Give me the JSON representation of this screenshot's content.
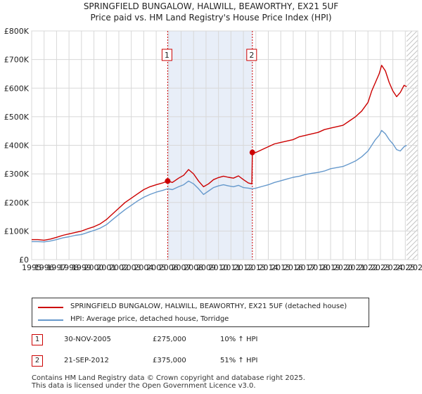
{
  "chart_data": {
    "type": "line",
    "title": "SPRINGFIELD BUNGALOW, HALWILL, BEAWORTHY, EX21 5UF",
    "subtitle": "Price paid vs. HM Land Registry's House Price Index (HPI)",
    "xlabel": "",
    "ylabel": "",
    "xlim": [
      1995,
      2026
    ],
    "ylim": [
      0,
      800000
    ],
    "x_ticks": [
      "1995",
      "1996",
      "1997",
      "1998",
      "1999",
      "2000",
      "2001",
      "2002",
      "2003",
      "2004",
      "2005",
      "2006",
      "2007",
      "2008",
      "2009",
      "2010",
      "2011",
      "2012",
      "2013",
      "2014",
      "2015",
      "2016",
      "2017",
      "2018",
      "2019",
      "2020",
      "2021",
      "2022",
      "2023",
      "2024",
      "2025",
      "2026"
    ],
    "y_ticks": [
      {
        "value": 0,
        "label": "£0"
      },
      {
        "value": 100000,
        "label": "£100K"
      },
      {
        "value": 200000,
        "label": "£200K"
      },
      {
        "value": 300000,
        "label": "£300K"
      },
      {
        "value": 400000,
        "label": "£400K"
      },
      {
        "value": 500000,
        "label": "£500K"
      },
      {
        "value": 600000,
        "label": "£600K"
      },
      {
        "value": 700000,
        "label": "£700K"
      },
      {
        "value": 800000,
        "label": "£800K"
      }
    ],
    "shaded_period": [
      2005.92,
      2012.72
    ],
    "projection_start": 2025.1,
    "series": [
      {
        "name": "SPRINGFIELD BUNGALOW, HALWILL, BEAWORTHY, EX21 5UF (detached house)",
        "color": "#cc0000",
        "x": [
          1995.0,
          1995.5,
          1996.0,
          1996.5,
          1997.0,
          1997.5,
          1998.0,
          1998.5,
          1999.0,
          1999.5,
          2000.0,
          2000.5,
          2001.0,
          2001.5,
          2002.0,
          2002.5,
          2003.0,
          2003.5,
          2004.0,
          2004.5,
          2005.0,
          2005.5,
          2005.92,
          2006.3,
          2006.8,
          2007.2,
          2007.6,
          2008.0,
          2008.4,
          2008.8,
          2009.2,
          2009.6,
          2010.0,
          2010.4,
          2010.8,
          2011.2,
          2011.6,
          2012.0,
          2012.4,
          2012.68,
          2012.72,
          2013.0,
          2013.5,
          2014.0,
          2014.5,
          2015.0,
          2015.5,
          2016.0,
          2016.5,
          2017.0,
          2017.5,
          2018.0,
          2018.5,
          2019.0,
          2019.5,
          2020.0,
          2020.5,
          2021.0,
          2021.5,
          2022.0,
          2022.3,
          2022.6,
          2022.9,
          2023.1,
          2023.4,
          2023.7,
          2024.0,
          2024.3,
          2024.6,
          2024.9,
          2025.1
        ],
        "values": [
          70000,
          70000,
          68000,
          72000,
          78000,
          85000,
          90000,
          95000,
          100000,
          108000,
          115000,
          125000,
          140000,
          160000,
          180000,
          200000,
          215000,
          230000,
          245000,
          255000,
          262000,
          268000,
          275000,
          270000,
          285000,
          295000,
          315000,
          300000,
          275000,
          255000,
          265000,
          280000,
          287000,
          292000,
          288000,
          285000,
          293000,
          280000,
          268000,
          265000,
          375000,
          375000,
          385000,
          395000,
          405000,
          410000,
          415000,
          420000,
          430000,
          435000,
          440000,
          445000,
          455000,
          460000,
          465000,
          470000,
          485000,
          500000,
          520000,
          550000,
          590000,
          620000,
          650000,
          680000,
          660000,
          620000,
          590000,
          570000,
          585000,
          610000,
          605000
        ]
      },
      {
        "name": "HPI: Average price, detached house, Torridge",
        "color": "#6699cc",
        "x": [
          1995.0,
          1995.5,
          1996.0,
          1996.5,
          1997.0,
          1997.5,
          1998.0,
          1998.5,
          1999.0,
          1999.5,
          2000.0,
          2000.5,
          2001.0,
          2001.5,
          2002.0,
          2002.5,
          2003.0,
          2003.5,
          2004.0,
          2004.5,
          2005.0,
          2005.5,
          2005.92,
          2006.3,
          2006.8,
          2007.2,
          2007.6,
          2008.0,
          2008.4,
          2008.8,
          2009.2,
          2009.6,
          2010.0,
          2010.4,
          2010.8,
          2011.2,
          2011.6,
          2012.0,
          2012.4,
          2012.72,
          2013.0,
          2013.5,
          2014.0,
          2014.5,
          2015.0,
          2015.5,
          2016.0,
          2016.5,
          2017.0,
          2017.5,
          2018.0,
          2018.5,
          2019.0,
          2019.5,
          2020.0,
          2020.5,
          2021.0,
          2021.5,
          2022.0,
          2022.3,
          2022.6,
          2022.9,
          2023.1,
          2023.4,
          2023.7,
          2024.0,
          2024.3,
          2024.6,
          2024.9,
          2025.1
        ],
        "values": [
          63000,
          63000,
          62000,
          65000,
          70000,
          76000,
          80000,
          85000,
          88000,
          95000,
          102000,
          110000,
          122000,
          140000,
          158000,
          175000,
          190000,
          205000,
          218000,
          228000,
          236000,
          242000,
          248000,
          245000,
          255000,
          262000,
          275000,
          265000,
          248000,
          228000,
          240000,
          252000,
          258000,
          262000,
          258000,
          255000,
          260000,
          252000,
          250000,
          248000,
          250000,
          256000,
          262000,
          270000,
          276000,
          282000,
          288000,
          292000,
          298000,
          302000,
          305000,
          310000,
          318000,
          322000,
          326000,
          335000,
          345000,
          360000,
          380000,
          400000,
          420000,
          435000,
          452000,
          440000,
          420000,
          405000,
          385000,
          380000,
          395000,
          400000
        ]
      }
    ],
    "annotations": [
      {
        "id": "1",
        "x": 2005.92,
        "value": 275000
      },
      {
        "id": "2",
        "x": 2012.72,
        "value": 375000
      }
    ]
  },
  "legend": {
    "items": [
      {
        "label": "SPRINGFIELD BUNGALOW, HALWILL, BEAWORTHY, EX21 5UF (detached house)",
        "color": "#cc0000"
      },
      {
        "label": "HPI: Average price, detached house, Torridge",
        "color": "#6699cc"
      }
    ]
  },
  "transactions": [
    {
      "id": "1",
      "date": "30-NOV-2005",
      "price": "£275,000",
      "hpi": "10% ↑ HPI"
    },
    {
      "id": "2",
      "date": "21-SEP-2012",
      "price": "£375,000",
      "hpi": "51% ↑ HPI"
    }
  ],
  "footer": {
    "line1": "Contains HM Land Registry data © Crown copyright and database right 2025.",
    "line2": "This data is licensed under the Open Government Licence v3.0."
  }
}
